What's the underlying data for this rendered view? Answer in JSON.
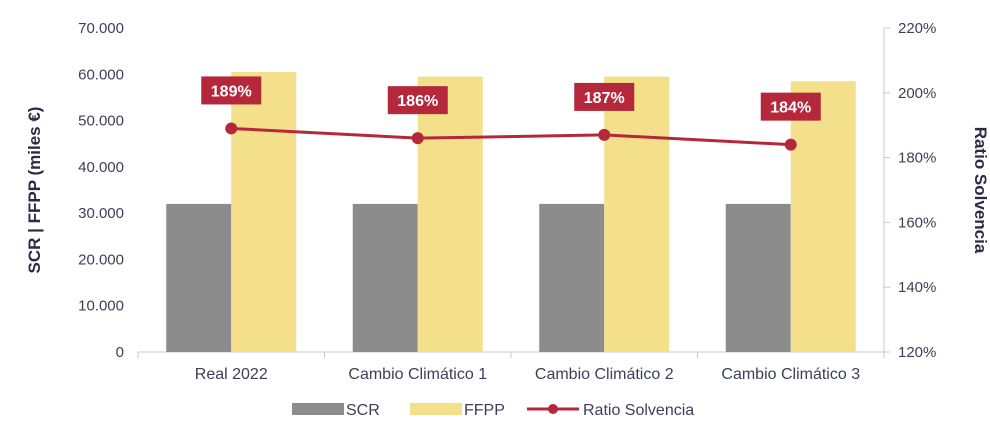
{
  "chart_data": {
    "type": "bar",
    "categories": [
      "Real 2022",
      "Cambio Climático 1",
      "Cambio Climático 2",
      "Cambio Climático 3"
    ],
    "series": [
      {
        "name": "SCR",
        "type": "bar",
        "axis": "left",
        "color": "#8c8c8c",
        "values": [
          32000,
          32000,
          32000,
          32000
        ]
      },
      {
        "name": "FFPP",
        "type": "bar",
        "axis": "left",
        "color": "#f4e08a",
        "values": [
          60500,
          59500,
          59500,
          58500
        ]
      },
      {
        "name": "Ratio Solvencia",
        "type": "line",
        "axis": "right",
        "color": "#b5283b",
        "values": [
          189,
          186,
          187,
          184
        ],
        "labels": [
          "189%",
          "186%",
          "187%",
          "184%"
        ]
      }
    ],
    "ylabel": "SCR | FFPP (miles €)",
    "y2label": "Ratio Solvencia",
    "ylim": [
      0,
      70000
    ],
    "y2lim": [
      120,
      220
    ],
    "yticks": [
      0,
      10000,
      20000,
      30000,
      40000,
      50000,
      60000,
      70000
    ],
    "yticklabels": [
      "0",
      "10.000",
      "20.000",
      "30.000",
      "40.000",
      "50.000",
      "60.000",
      "70.000"
    ],
    "y2ticks": [
      120,
      140,
      160,
      180,
      200,
      220
    ],
    "y2ticklabels": [
      "120%",
      "140%",
      "160%",
      "180%",
      "200%",
      "220%"
    ],
    "grid": false,
    "legend_position": "bottom"
  }
}
